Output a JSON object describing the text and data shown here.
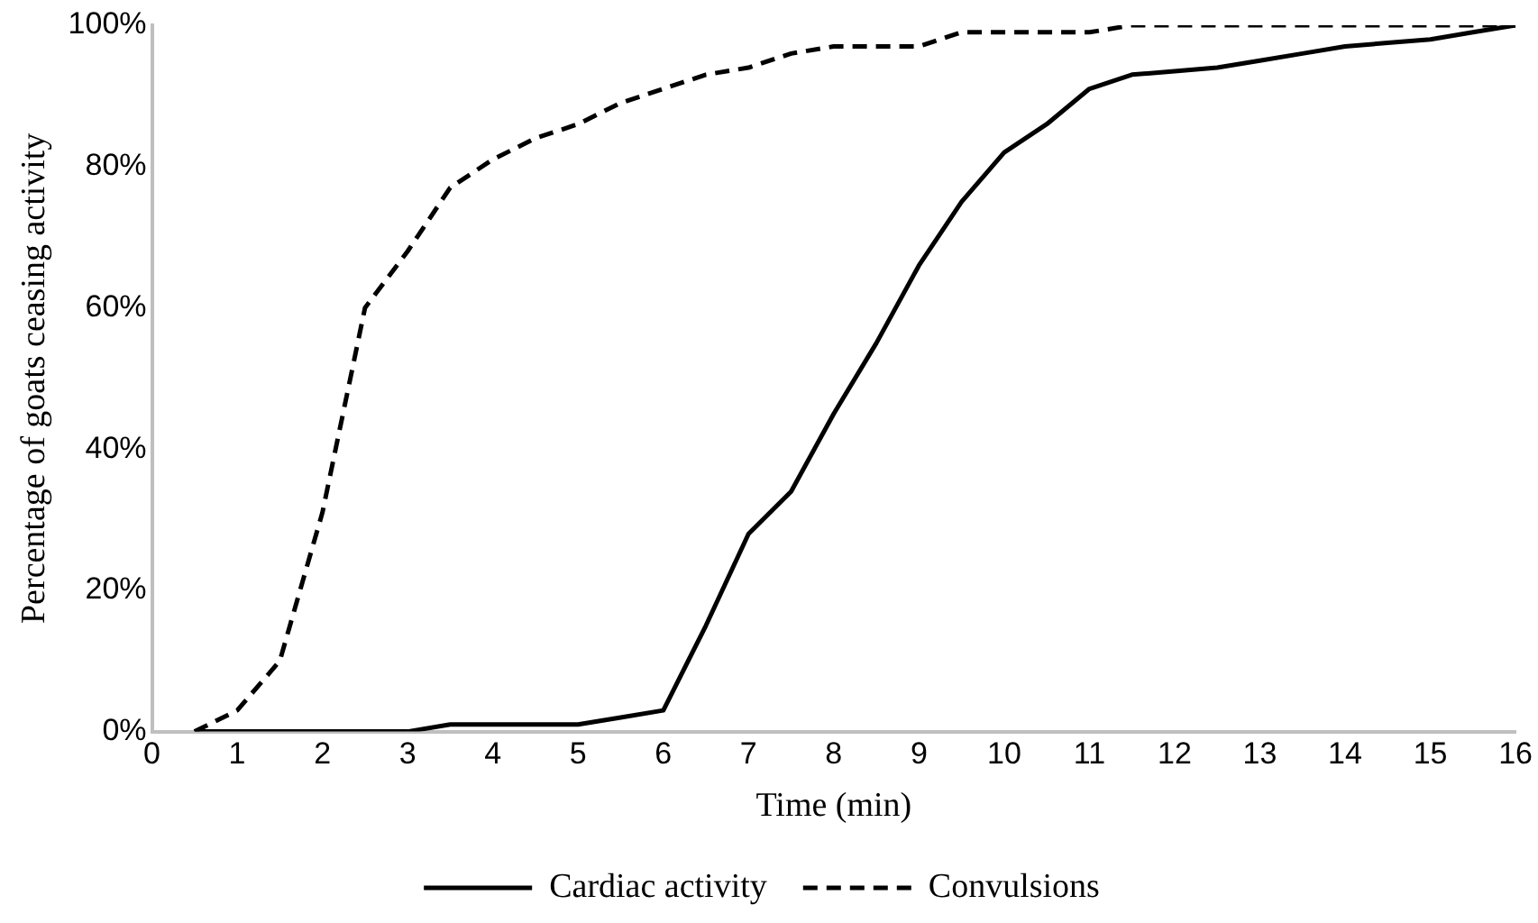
{
  "chart_data": {
    "type": "line",
    "xlabel": "Time (min)",
    "ylabel": "Percentage of goats ceasing activity",
    "xlim": [
      0,
      16
    ],
    "xticks": [
      0,
      1,
      2,
      3,
      4,
      5,
      6,
      7,
      8,
      9,
      10,
      11,
      12,
      13,
      14,
      15,
      16
    ],
    "ylim": [
      0,
      100
    ],
    "yticks": [
      {
        "value": 0,
        "label": "0%"
      },
      {
        "value": 20,
        "label": "20%"
      },
      {
        "value": 40,
        "label": "40%"
      },
      {
        "value": 60,
        "label": "60%"
      },
      {
        "value": 80,
        "label": "80%"
      },
      {
        "value": 100,
        "label": "100%"
      }
    ],
    "grid": false,
    "legend": "bottom",
    "marker": "none",
    "series": [
      {
        "name": "Cardiac activity",
        "color": "#000000",
        "line_style": "solid",
        "x": [
          0.5,
          1,
          1.5,
          2,
          2.5,
          3,
          3.5,
          4,
          4.5,
          5,
          5.5,
          6,
          6.5,
          7,
          7.5,
          8,
          8.5,
          9,
          9.5,
          10,
          10.5,
          11,
          11.5,
          12,
          12.5,
          13,
          13.5,
          14,
          14.5,
          15,
          15.5,
          16
        ],
        "values": [
          0,
          0,
          0,
          0,
          0,
          0,
          1,
          1,
          1,
          1,
          2,
          3,
          15,
          28,
          34,
          45,
          55,
          66,
          75,
          82,
          86,
          91,
          93,
          93.5,
          94,
          95,
          96,
          97,
          97.5,
          98,
          99,
          100
        ]
      },
      {
        "name": "Convulsions",
        "color": "#000000",
        "line_style": "dashed",
        "x": [
          0.5,
          1,
          1.5,
          2,
          2.5,
          3,
          3.5,
          4,
          4.5,
          5,
          5.5,
          6,
          6.5,
          7,
          7.5,
          8,
          8.5,
          9,
          9.5,
          10,
          10.5,
          11,
          11.5,
          12,
          12.5,
          13,
          13.5,
          14,
          14.5,
          15,
          15.5,
          16
        ],
        "values": [
          0,
          3,
          10,
          31,
          60,
          68,
          77,
          81,
          84,
          86,
          89,
          91,
          93,
          94,
          96,
          97,
          97,
          97,
          99,
          99,
          99,
          99,
          100,
          100,
          100,
          100,
          100,
          100,
          100,
          100,
          100,
          100
        ]
      }
    ]
  }
}
